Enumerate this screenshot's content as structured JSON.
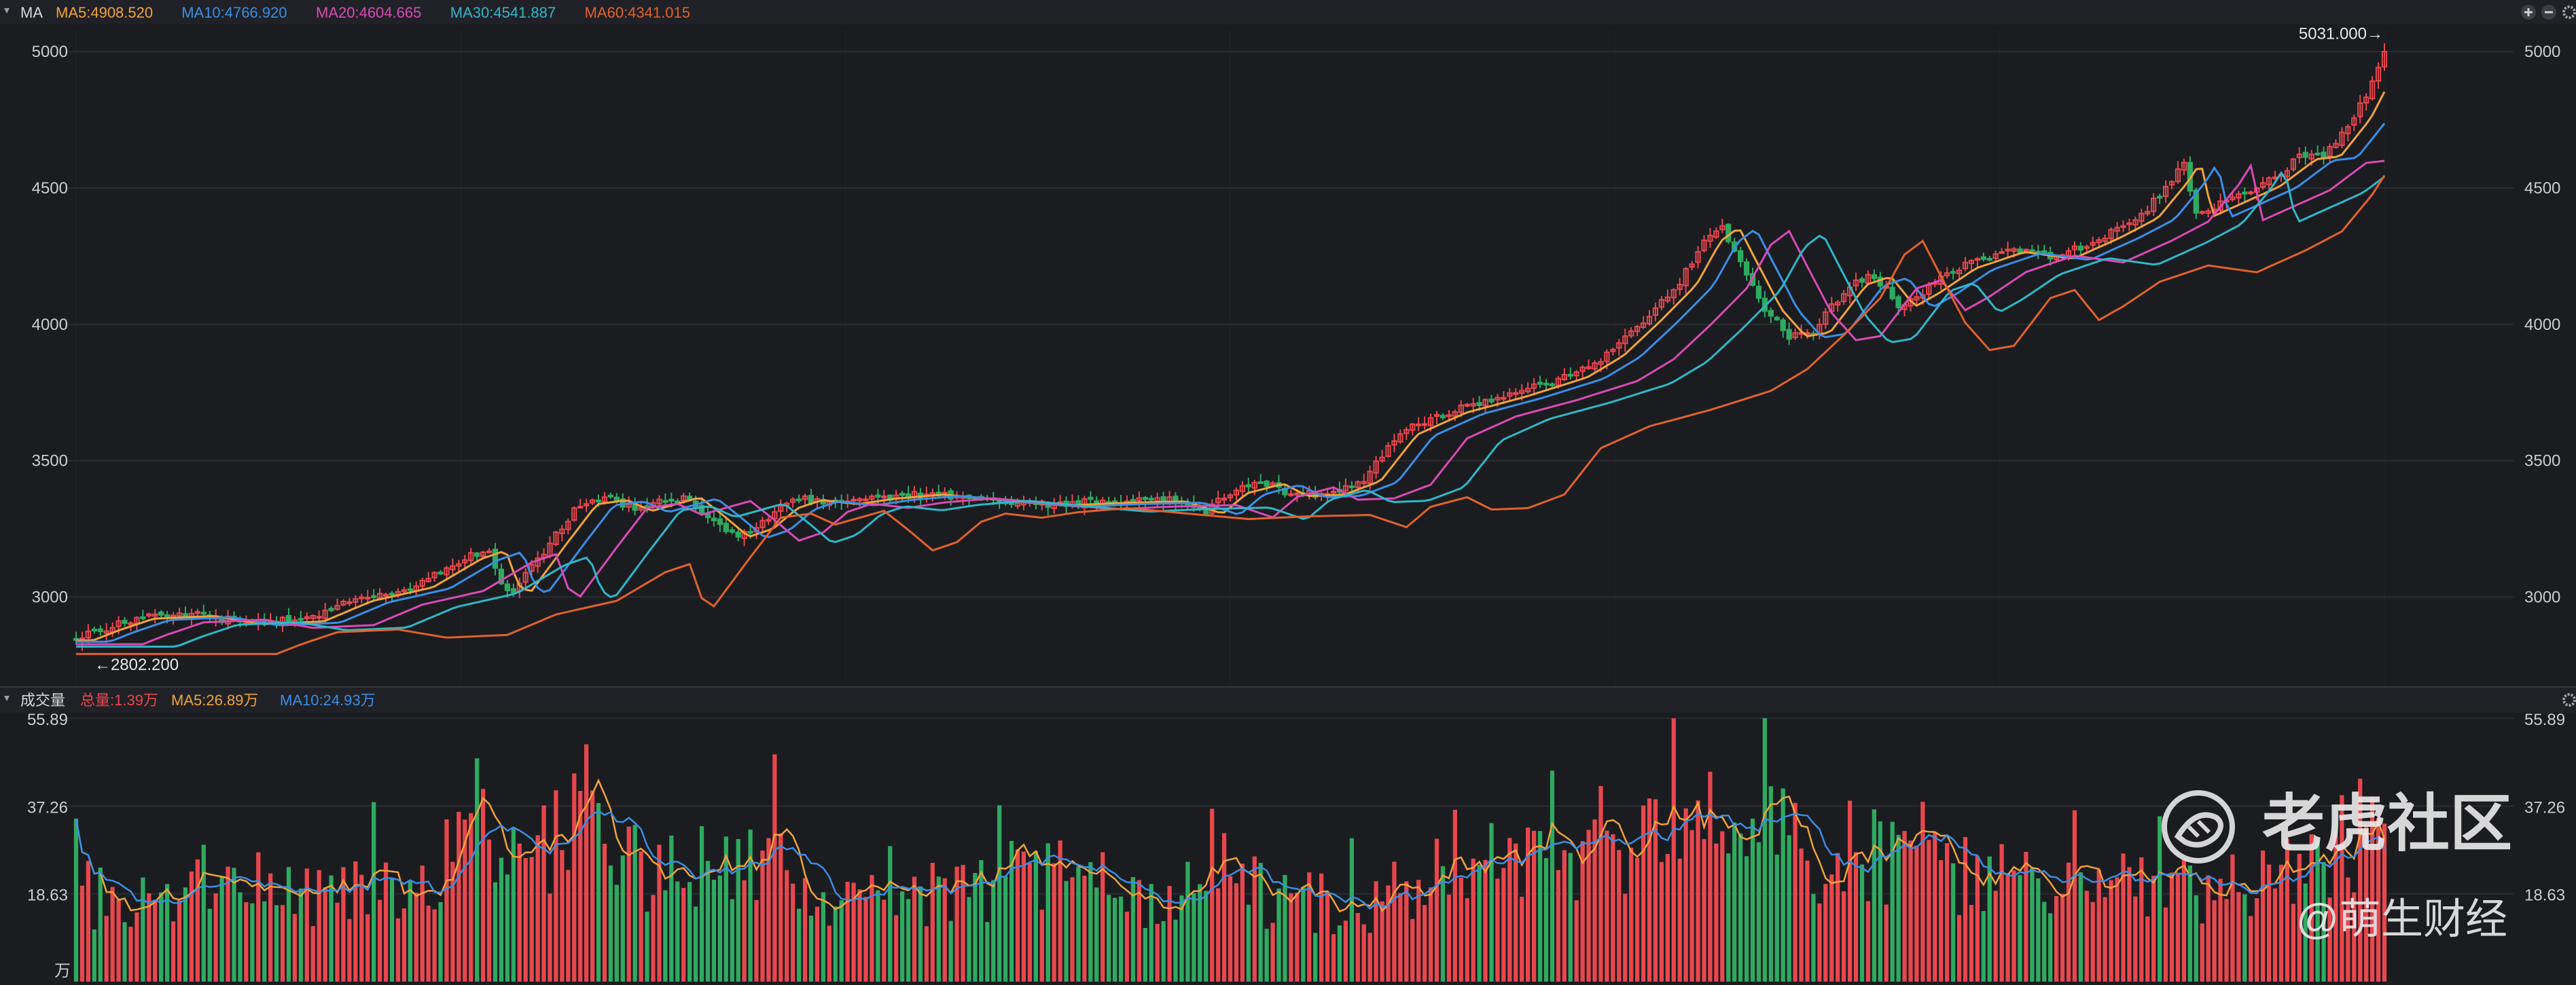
{
  "header": {
    "panel_label": "MA",
    "ma_readouts": [
      {
        "label": "MA5:4908.520",
        "color": "#f0a33a"
      },
      {
        "label": "MA10:4766.920",
        "color": "#3a8ee6"
      },
      {
        "label": "MA20:4604.665",
        "color": "#d94ab5"
      },
      {
        "label": "MA30:4541.887",
        "color": "#2fb7c9"
      },
      {
        "label": "MA60:4341.015",
        "color": "#e0622b"
      }
    ]
  },
  "volume_header": {
    "panel_label": "成交量",
    "readouts": [
      {
        "label": "总量:1.39万",
        "color": "#e8474d"
      },
      {
        "label": "MA5:26.89万",
        "color": "#f0a33a"
      },
      {
        "label": "MA10:24.93万",
        "color": "#3a8ee6"
      }
    ]
  },
  "watermark": {
    "brand": "老虎社区",
    "author": "@萌生财经"
  },
  "colors": {
    "up": "#e8474d",
    "down": "#2eaa61",
    "grid": "#2a2c31",
    "axis_text": "#c9ccd1"
  },
  "chart_data": [
    {
      "type": "candlestick",
      "title": "",
      "y_ticks": [
        3000,
        3500,
        4000,
        4500,
        5000
      ],
      "y_tick_labels": [
        "3000",
        "3500",
        "4000",
        "4500",
        "5000"
      ],
      "ylim": [
        2680,
        5080
      ],
      "annotations": {
        "high_label": "5031.000→",
        "high_value": 5031.0,
        "low_label": "←2802.200",
        "low_value": 2802.2
      },
      "bars": 240,
      "anchors": [
        [
          0,
          2845
        ],
        [
          4,
          2880
        ],
        [
          10,
          2925
        ],
        [
          20,
          2935
        ],
        [
          28,
          2905
        ],
        [
          38,
          2915
        ],
        [
          46,
          2990
        ],
        [
          56,
          3040
        ],
        [
          64,
          3145
        ],
        [
          68,
          3175
        ],
        [
          70,
          3050
        ],
        [
          72,
          3020
        ],
        [
          78,
          3200
        ],
        [
          83,
          3345
        ],
        [
          88,
          3360
        ],
        [
          92,
          3320
        ],
        [
          96,
          3345
        ],
        [
          100,
          3370
        ],
        [
          104,
          3300
        ],
        [
          108,
          3225
        ],
        [
          112,
          3255
        ],
        [
          116,
          3330
        ],
        [
          120,
          3360
        ],
        [
          126,
          3345
        ],
        [
          132,
          3365
        ],
        [
          140,
          3380
        ],
        [
          150,
          3360
        ],
        [
          160,
          3340
        ],
        [
          170,
          3350
        ],
        [
          180,
          3355
        ],
        [
          186,
          3310
        ],
        [
          190,
          3385
        ],
        [
          196,
          3420
        ],
        [
          200,
          3375
        ],
        [
          206,
          3380
        ],
        [
          212,
          3430
        ],
        [
          218,
          3600
        ],
        [
          226,
          3680
        ],
        [
          236,
          3740
        ],
        [
          246,
          3810
        ],
        [
          252,
          3890
        ],
        [
          258,
          4015
        ],
        [
          264,
          4150
        ],
        [
          268,
          4310
        ],
        [
          271,
          4360
        ],
        [
          274,
          4230
        ],
        [
          278,
          4060
        ],
        [
          282,
          3960
        ],
        [
          286,
          3975
        ],
        [
          292,
          4150
        ],
        [
          296,
          4180
        ],
        [
          300,
          4070
        ],
        [
          304,
          4120
        ],
        [
          310,
          4210
        ],
        [
          318,
          4270
        ],
        [
          326,
          4245
        ],
        [
          334,
          4325
        ],
        [
          340,
          4395
        ],
        [
          345,
          4530
        ],
        [
          347,
          4600
        ],
        [
          349,
          4400
        ],
        [
          354,
          4450
        ],
        [
          360,
          4510
        ],
        [
          366,
          4610
        ],
        [
          370,
          4620
        ],
        [
          375,
          4760
        ],
        [
          378,
          4890
        ],
        [
          380,
          5000
        ]
      ],
      "moving_averages": [
        {
          "name": "MA5",
          "period": 5,
          "color": "#f0a33a"
        },
        {
          "name": "MA10",
          "period": 10,
          "color": "#3a8ee6"
        },
        {
          "name": "MA20",
          "period": 20,
          "color": "#d94ab5"
        },
        {
          "name": "MA30",
          "period": 30,
          "color": "#2fb7c9"
        },
        {
          "name": "MA60",
          "period": 60,
          "color": "#e0622b"
        }
      ]
    },
    {
      "type": "bar",
      "title": "",
      "unit_label": "万",
      "y_ticks": [
        18.63,
        37.26,
        55.89
      ],
      "y_tick_labels": [
        "18.63",
        "37.26",
        "55.89"
      ],
      "ylim": [
        0,
        55.89
      ],
      "volume_anchors": [
        [
          0,
          18
        ],
        [
          20,
          19
        ],
        [
          40,
          17
        ],
        [
          60,
          22
        ],
        [
          64,
          32
        ],
        [
          68,
          27
        ],
        [
          74,
          24
        ],
        [
          80,
          30
        ],
        [
          84,
          36
        ],
        [
          88,
          26
        ],
        [
          96,
          22
        ],
        [
          104,
          27
        ],
        [
          108,
          29
        ],
        [
          112,
          26
        ],
        [
          118,
          21
        ],
        [
          124,
          14
        ],
        [
          130,
          17
        ],
        [
          150,
          20
        ],
        [
          160,
          22
        ],
        [
          176,
          18
        ],
        [
          186,
          21
        ],
        [
          190,
          26
        ],
        [
          196,
          18
        ],
        [
          212,
          16
        ],
        [
          220,
          21
        ],
        [
          226,
          27
        ],
        [
          236,
          24
        ],
        [
          246,
          24
        ],
        [
          258,
          28
        ],
        [
          264,
          33
        ],
        [
          268,
          38
        ],
        [
          272,
          42
        ],
        [
          276,
          33
        ],
        [
          282,
          30
        ],
        [
          290,
          23
        ],
        [
          296,
          28
        ],
        [
          300,
          25
        ],
        [
          310,
          23
        ],
        [
          318,
          21
        ],
        [
          330,
          19
        ],
        [
          340,
          20
        ],
        [
          350,
          19
        ],
        [
          360,
          21
        ],
        [
          366,
          23
        ],
        [
          372,
          28
        ],
        [
          376,
          32
        ],
        [
          380,
          30
        ]
      ],
      "moving_averages": [
        {
          "name": "MA5",
          "period": 5,
          "color": "#f0a33a"
        },
        {
          "name": "MA10",
          "period": 10,
          "color": "#3a8ee6"
        }
      ]
    }
  ]
}
